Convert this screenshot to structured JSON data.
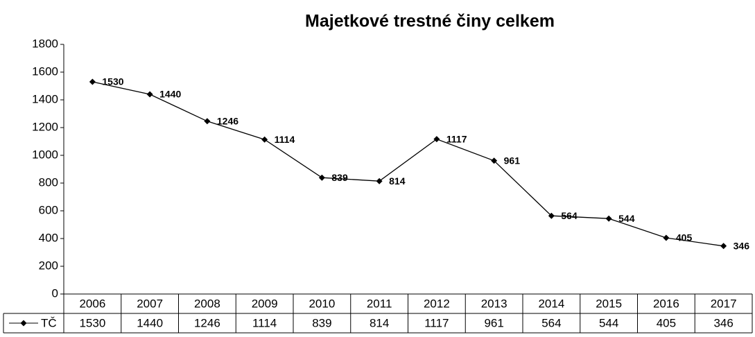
{
  "chart_data": {
    "type": "line",
    "title": "Majetkové trestné činy celkem",
    "categories": [
      "2006",
      "2007",
      "2008",
      "2009",
      "2010",
      "2011",
      "2012",
      "2013",
      "2014",
      "2015",
      "2016",
      "2017"
    ],
    "series": [
      {
        "name": "TČ",
        "color": "#000000",
        "values": [
          1530,
          1440,
          1246,
          1114,
          839,
          814,
          1117,
          961,
          564,
          544,
          405,
          346
        ]
      }
    ],
    "ylim": [
      0,
      1800
    ],
    "yticks": [
      0,
      200,
      400,
      600,
      800,
      1000,
      1200,
      1400,
      1600,
      1800
    ],
    "data_table": true,
    "data_labels": true
  }
}
